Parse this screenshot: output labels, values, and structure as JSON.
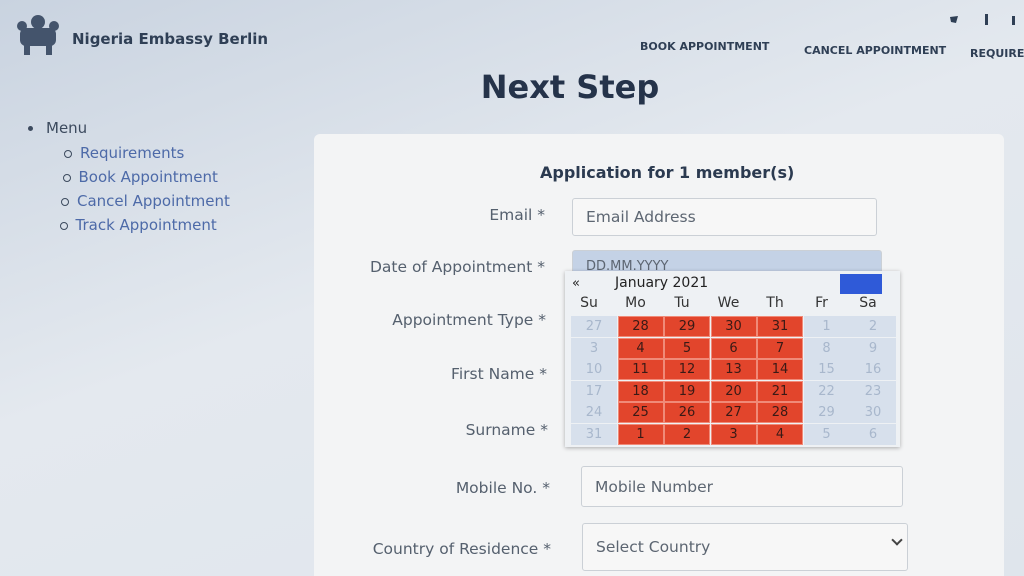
{
  "header": {
    "site_name": "Nigeria Embassy Berlin",
    "nav": [
      "BOOK APPOINTMENT",
      "CANCEL APPOINTMENT",
      "REQUIREMENTS"
    ]
  },
  "page_title": "Next Step",
  "menu": {
    "title": "Menu",
    "items": [
      "Requirements",
      "Book Appointment",
      "Cancel Appointment",
      "Track Appointment"
    ]
  },
  "form": {
    "heading": "Application for 1 member(s)",
    "fields": [
      {
        "label": "Email *",
        "placeholder": "Email Address"
      },
      {
        "label": "Date of Appointment *",
        "placeholder": "DD.MM.YYYY"
      },
      {
        "label": "Appointment Type *"
      },
      {
        "label": "First Name *"
      },
      {
        "label": "Surname *"
      },
      {
        "label": "Mobile No. *",
        "placeholder": "Mobile Number"
      },
      {
        "label": "Country of Residence *",
        "placeholder": "Select Country"
      }
    ]
  },
  "calendar": {
    "prev": "«",
    "month": "January 2021",
    "weekdays": [
      "Su",
      "Mo",
      "Tu",
      "We",
      "Th",
      "Fr",
      "Sa"
    ],
    "weeks": [
      [
        27,
        28,
        29,
        30,
        31,
        1,
        2
      ],
      [
        3,
        4,
        5,
        6,
        7,
        8,
        9
      ],
      [
        10,
        11,
        12,
        13,
        14,
        15,
        16
      ],
      [
        17,
        18,
        19,
        20,
        21,
        22,
        23
      ],
      [
        24,
        25,
        26,
        27,
        28,
        29,
        30
      ],
      [
        31,
        1,
        2,
        3,
        4,
        5,
        6
      ]
    ]
  }
}
